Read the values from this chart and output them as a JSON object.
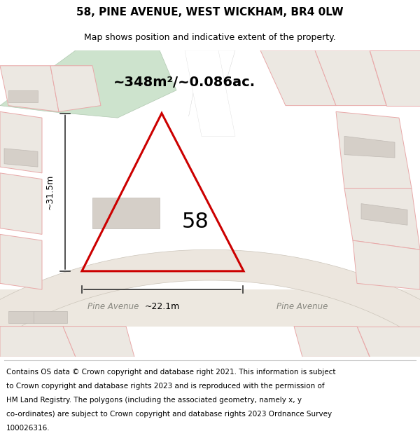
{
  "title": "58, PINE AVENUE, WEST WICKHAM, BR4 0LW",
  "subtitle": "Map shows position and indicative extent of the property.",
  "footer": "Contains OS data © Crown copyright and database right 2021. This information is subject to Crown copyright and database rights 2023 and is reproduced with the permission of HM Land Registry. The polygons (including the associated geometry, namely x, y co-ordinates) are subject to Crown copyright and database rights 2023 Ordnance Survey 100026316.",
  "area_text": "~348m²/~0.086ac.",
  "label_58": "58",
  "dim_height": "~31.5m",
  "dim_width": "~22.1m",
  "road_label_left": "Pine Avenue",
  "road_label_right": "Pine Avenue",
  "bg_map_color": "#f2ede8",
  "bg_white": "#ffffff",
  "bg_green": "#dce8dc",
  "road_color": "#e8e0d8",
  "building_color": "#d8d0c8",
  "plot_line_color": "#cc0000",
  "outline_line_color": "#e8a0a0",
  "dim_line_color": "#333333",
  "title_fontsize": 11,
  "subtitle_fontsize": 9,
  "footer_fontsize": 7.5
}
